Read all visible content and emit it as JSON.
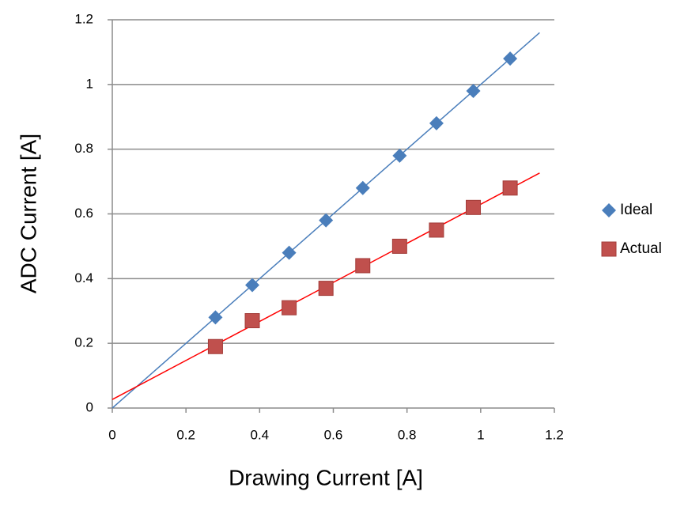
{
  "chart_data": {
    "type": "scatter",
    "x_label": "Drawing Current [A]",
    "y_label": "ADC Current [A]",
    "x": [
      0.28,
      0.38,
      0.48,
      0.58,
      0.68,
      0.78,
      0.88,
      0.98,
      1.08
    ],
    "series": [
      {
        "name": "Ideal",
        "color": "#4a7ebb",
        "trend_color": "#4a7ebb",
        "marker": "diamond",
        "values": [
          0.28,
          0.38,
          0.48,
          0.58,
          0.68,
          0.78,
          0.88,
          0.98,
          1.08
        ]
      },
      {
        "name": "Actual",
        "color": "#c0504d",
        "trend_color": "#ff0000",
        "marker": "square",
        "values": [
          0.19,
          0.27,
          0.31,
          0.37,
          0.44,
          0.5,
          0.55,
          0.62,
          0.68
        ]
      }
    ],
    "xlim": [
      0,
      1.2
    ],
    "xticks": [
      0,
      0.2,
      0.4,
      0.6,
      0.8,
      1,
      1.2
    ],
    "ylim": [
      0,
      1.2
    ],
    "yticks": [
      0,
      0.2,
      0.4,
      0.6,
      0.8,
      1,
      1.2
    ],
    "grid": true,
    "trendline": true,
    "legend": "right"
  }
}
